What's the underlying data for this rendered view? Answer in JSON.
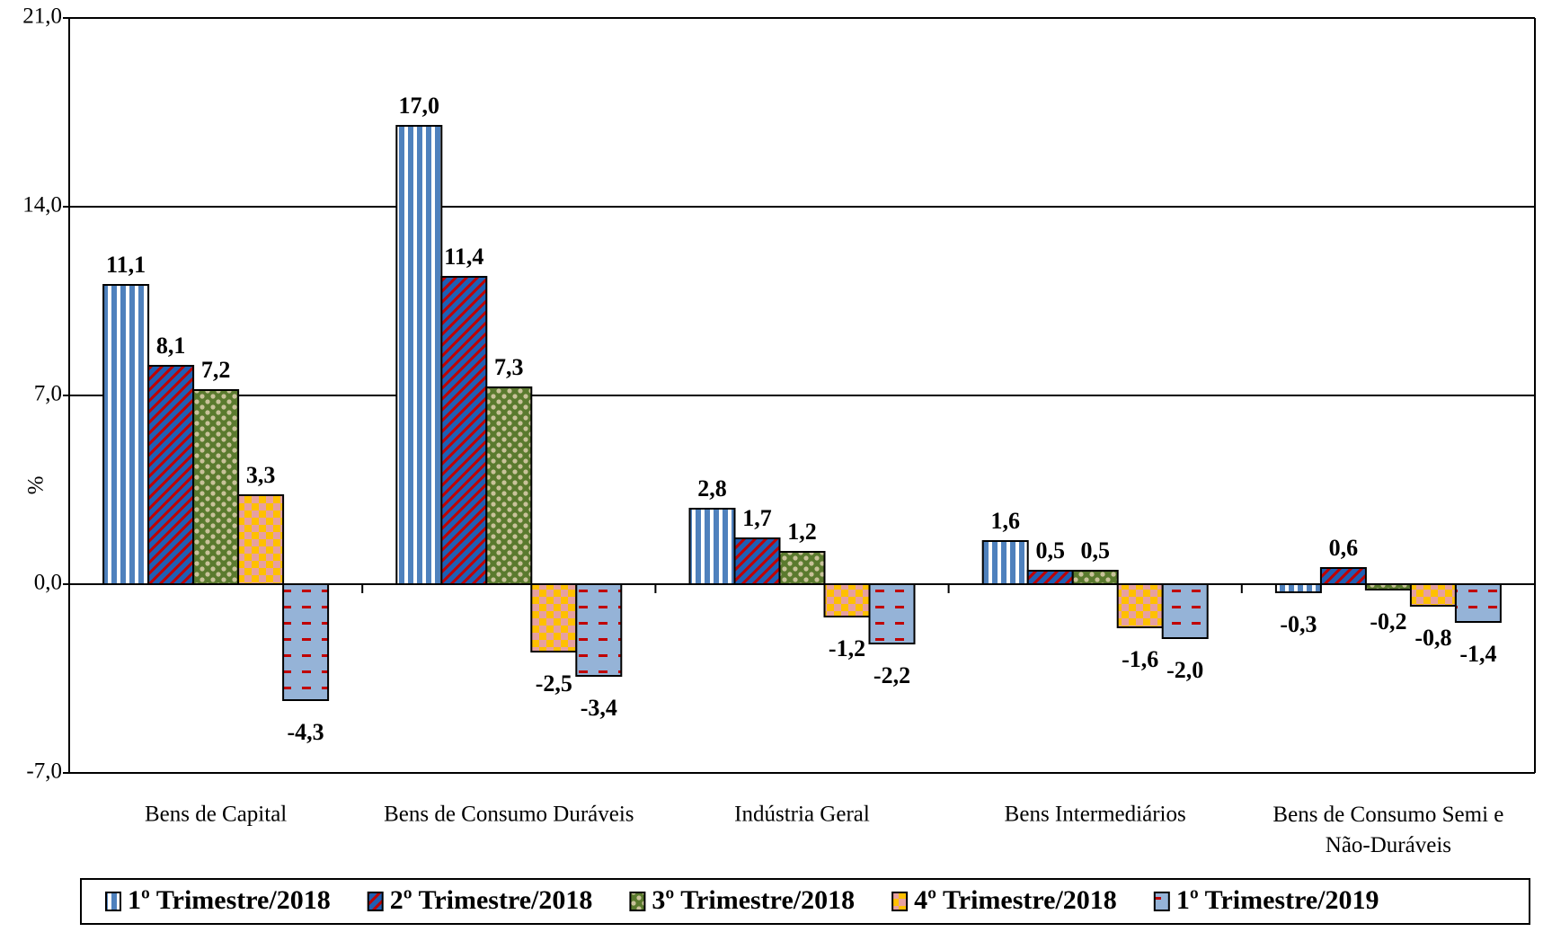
{
  "chart_data": {
    "type": "bar",
    "y_label": "%",
    "categories": [
      "Bens de Capital",
      "Bens de Consumo Duráveis",
      "Indústria Geral",
      "Bens Intermediários",
      "Bens de Consumo Semi e Não-Duráveis"
    ],
    "series": [
      {
        "name": "1º Trimestre/2018",
        "color": "#4f81bd",
        "values": [
          11.1,
          17.0,
          2.8,
          1.6,
          -0.3
        ],
        "value_labels": [
          "11,1",
          "17,0",
          "2,8",
          "1,6",
          "-0,3"
        ]
      },
      {
        "name": "2º Trimestre/2018",
        "color": "#1f5fb4",
        "values": [
          8.1,
          11.4,
          1.7,
          0.5,
          0.6
        ],
        "value_labels": [
          "8,1",
          "11,4",
          "1,7",
          "0,5",
          "0,6"
        ]
      },
      {
        "name": "3º Trimestre/2018",
        "color": "#5a7a2e",
        "values": [
          7.2,
          7.3,
          1.2,
          0.5,
          -0.2
        ],
        "value_labels": [
          "7,2",
          "7,3",
          "1,2",
          "0,5",
          "-0,2"
        ]
      },
      {
        "name": "4º Trimestre/2018",
        "color": "#ffc000",
        "values": [
          3.3,
          -2.5,
          -1.2,
          -1.6,
          -0.8
        ],
        "value_labels": [
          "3,3",
          "-2,5",
          "-1,2",
          "-1,6",
          "-0,8"
        ]
      },
      {
        "name": "1º Trimestre/2019",
        "color": "#95b3d7",
        "values": [
          -4.3,
          -3.4,
          -2.2,
          -2.0,
          -1.4
        ],
        "value_labels": [
          "-4,3",
          "-3,4",
          "-2,2",
          "-2,0",
          "-1,4"
        ]
      }
    ],
    "ylim": [
      -7,
      21
    ],
    "yticks": [
      {
        "value": -7,
        "label": "-7,0"
      },
      {
        "value": 0,
        "label": "0,0"
      },
      {
        "value": 7,
        "label": "7,0"
      },
      {
        "value": 14,
        "label": "14,0"
      },
      {
        "value": 21,
        "label": "21,0"
      }
    ],
    "grid": true
  }
}
